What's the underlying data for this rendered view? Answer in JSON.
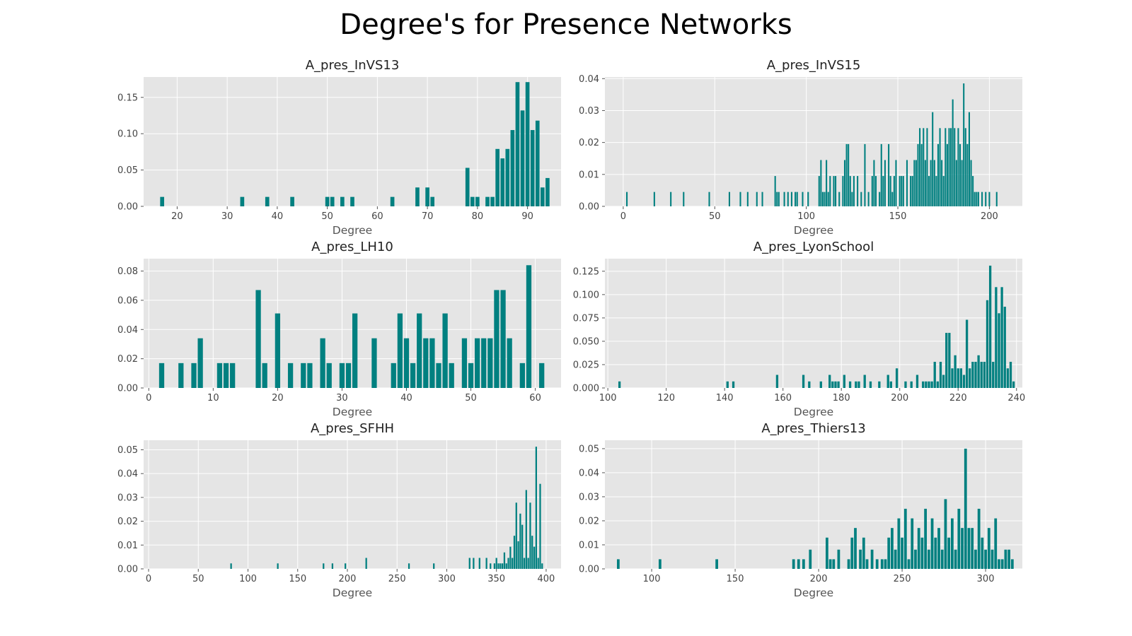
{
  "title": "Degree's for Presence Networks",
  "colors": {
    "bar": "#008080",
    "panel_bg": "#e5e5e5",
    "grid": "#ffffff"
  },
  "chart_data": [
    {
      "type": "bar",
      "title": "A_pres_InVS13",
      "xlabel": "Degree",
      "ylabel": "",
      "grid": true,
      "xlim": [
        13.3,
        96.7
      ],
      "ylim": [
        0,
        0.178
      ],
      "xticks": [
        20,
        30,
        40,
        50,
        60,
        70,
        80,
        90
      ],
      "yticks": [
        0.0,
        0.05,
        0.1,
        0.15
      ],
      "ytick_labels": [
        "0.00",
        "0.05",
        "0.10",
        "0.15"
      ],
      "x": [
        17,
        33,
        38,
        43,
        50,
        51,
        53,
        55,
        63,
        68,
        70,
        71,
        78,
        79,
        80,
        82,
        83,
        84,
        85,
        86,
        87,
        88,
        89,
        90,
        91,
        92,
        93,
        94
      ],
      "values": [
        0.013,
        0.013,
        0.013,
        0.013,
        0.013,
        0.013,
        0.013,
        0.013,
        0.013,
        0.026,
        0.026,
        0.013,
        0.053,
        0.013,
        0.013,
        0.013,
        0.013,
        0.079,
        0.066,
        0.079,
        0.105,
        0.171,
        0.132,
        0.171,
        0.105,
        0.118,
        0.026,
        0.039
      ]
    },
    {
      "type": "bar",
      "title": "A_pres_InVS15",
      "xlabel": "Degree",
      "ylabel": "",
      "grid": true,
      "xlim": [
        -10,
        218
      ],
      "ylim": [
        0,
        0.0405
      ],
      "xticks": [
        0,
        50,
        100,
        150,
        200
      ],
      "yticks": [
        0.0,
        0.01,
        0.02,
        0.03,
        0.04
      ],
      "ytick_labels": [
        "0.00",
        "0.01",
        "0.02",
        "0.03",
        "0.04"
      ],
      "x": [
        2,
        17,
        26,
        33,
        47,
        58,
        64,
        68,
        73,
        76,
        83,
        84,
        85,
        88,
        90,
        92,
        94,
        95,
        98,
        101,
        107,
        108,
        109,
        110,
        111,
        112,
        113,
        115,
        116,
        118,
        120,
        121,
        122,
        123,
        124,
        125,
        126,
        128,
        130,
        132,
        134,
        136,
        137,
        138,
        140,
        141,
        142,
        143,
        145,
        146,
        147,
        148,
        149,
        151,
        152,
        153,
        155,
        157,
        158,
        159,
        160,
        161,
        162,
        163,
        164,
        165,
        166,
        167,
        168,
        169,
        170,
        171,
        172,
        173,
        174,
        175,
        176,
        177,
        178,
        179,
        180,
        181,
        182,
        183,
        184,
        185,
        186,
        187,
        188,
        189,
        190,
        191,
        192,
        193,
        194,
        196,
        198,
        200,
        204
      ],
      "values": [
        0.0045,
        0.0045,
        0.0045,
        0.0045,
        0.0045,
        0.0045,
        0.0045,
        0.0045,
        0.0045,
        0.0045,
        0.0095,
        0.0045,
        0.0045,
        0.0045,
        0.0045,
        0.0045,
        0.0045,
        0.0045,
        0.0045,
        0.0045,
        0.0095,
        0.0145,
        0.0045,
        0.0045,
        0.0145,
        0.0045,
        0.0095,
        0.0095,
        0.0095,
        0.0045,
        0.0095,
        0.0145,
        0.0195,
        0.0195,
        0.0095,
        0.0045,
        0.0095,
        0.0095,
        0.0045,
        0.0195,
        0.0045,
        0.0095,
        0.0145,
        0.0095,
        0.0045,
        0.0195,
        0.0095,
        0.0145,
        0.0195,
        0.0095,
        0.0045,
        0.0095,
        0.0145,
        0.0095,
        0.0095,
        0.0095,
        0.0145,
        0.0095,
        0.0095,
        0.0145,
        0.0145,
        0.0195,
        0.0245,
        0.0195,
        0.0245,
        0.0145,
        0.0245,
        0.0095,
        0.0145,
        0.0295,
        0.0145,
        0.0095,
        0.0195,
        0.0245,
        0.0145,
        0.0095,
        0.0245,
        0.0195,
        0.0245,
        0.0245,
        0.0335,
        0.0245,
        0.0145,
        0.0245,
        0.0195,
        0.0145,
        0.0385,
        0.0245,
        0.0195,
        0.0295,
        0.0145,
        0.0095,
        0.0045,
        0.0045,
        0.0045,
        0.0045,
        0.0045,
        0.0045,
        0.0045
      ]
    },
    {
      "type": "bar",
      "title": "A_pres_LH10",
      "xlabel": "Degree",
      "ylabel": "",
      "grid": true,
      "xlim": [
        -0.8,
        64
      ],
      "ylim": [
        0,
        0.0885
      ],
      "xticks": [
        0,
        10,
        20,
        30,
        40,
        50,
        60
      ],
      "yticks": [
        0.0,
        0.02,
        0.04,
        0.06,
        0.08
      ],
      "ytick_labels": [
        "0.00",
        "0.02",
        "0.04",
        "0.06",
        "0.08"
      ],
      "x": [
        2,
        5,
        7,
        8,
        11,
        12,
        13,
        17,
        18,
        20,
        22,
        24,
        25,
        27,
        28,
        30,
        31,
        32,
        35,
        38,
        39,
        40,
        41,
        42,
        43,
        44,
        45,
        46,
        47,
        49,
        50,
        51,
        52,
        53,
        54,
        55,
        56,
        58,
        59,
        61
      ],
      "values": [
        0.017,
        0.017,
        0.017,
        0.034,
        0.017,
        0.017,
        0.017,
        0.067,
        0.017,
        0.051,
        0.017,
        0.017,
        0.017,
        0.034,
        0.017,
        0.017,
        0.017,
        0.051,
        0.034,
        0.017,
        0.051,
        0.034,
        0.017,
        0.051,
        0.034,
        0.034,
        0.017,
        0.051,
        0.017,
        0.034,
        0.017,
        0.034,
        0.034,
        0.034,
        0.067,
        0.067,
        0.034,
        0.017,
        0.084,
        0.017
      ]
    },
    {
      "type": "bar",
      "title": "A_pres_LyonSchool",
      "xlabel": "Degree",
      "ylabel": "",
      "grid": true,
      "xlim": [
        99,
        242
      ],
      "ylim": [
        0,
        0.1385
      ],
      "xticks": [
        100,
        120,
        140,
        160,
        180,
        200,
        220,
        240
      ],
      "yticks": [
        0.0,
        0.025,
        0.05,
        0.075,
        0.1,
        0.125
      ],
      "ytick_labels": [
        "0.000",
        "0.025",
        "0.050",
        "0.075",
        "0.100",
        "0.125"
      ],
      "x": [
        104,
        141,
        143,
        158,
        167,
        169,
        173,
        176,
        177,
        178,
        179,
        181,
        183,
        185,
        186,
        188,
        190,
        193,
        196,
        197,
        199,
        202,
        204,
        206,
        208,
        209,
        210,
        211,
        212,
        213,
        214,
        215,
        216,
        217,
        218,
        219,
        220,
        221,
        222,
        223,
        224,
        225,
        226,
        227,
        228,
        229,
        230,
        231,
        232,
        233,
        234,
        235,
        236,
        237,
        238,
        239
      ],
      "values": [
        0.007,
        0.007,
        0.007,
        0.014,
        0.014,
        0.007,
        0.007,
        0.014,
        0.007,
        0.007,
        0.007,
        0.014,
        0.007,
        0.007,
        0.007,
        0.014,
        0.007,
        0.007,
        0.014,
        0.007,
        0.021,
        0.007,
        0.007,
        0.014,
        0.007,
        0.007,
        0.007,
        0.007,
        0.028,
        0.007,
        0.028,
        0.014,
        0.059,
        0.059,
        0.021,
        0.035,
        0.021,
        0.021,
        0.014,
        0.073,
        0.021,
        0.028,
        0.028,
        0.035,
        0.028,
        0.028,
        0.094,
        0.131,
        0.028,
        0.108,
        0.08,
        0.108,
        0.087,
        0.021,
        0.028,
        0.007
      ]
    },
    {
      "type": "bar",
      "title": "A_pres_SFHH",
      "xlabel": "Degree",
      "ylabel": "",
      "grid": true,
      "xlim": [
        -5,
        415
      ],
      "ylim": [
        0,
        0.054
      ],
      "xticks": [
        0,
        50,
        100,
        150,
        200,
        250,
        300,
        350,
        400
      ],
      "yticks": [
        0.0,
        0.01,
        0.02,
        0.03,
        0.04,
        0.05
      ],
      "ytick_labels": [
        "0.00",
        "0.01",
        "0.02",
        "0.03",
        "0.04",
        "0.05"
      ],
      "x": [
        83,
        130,
        176,
        185,
        198,
        219,
        262,
        287,
        323,
        327,
        333,
        340,
        344,
        348,
        350,
        352,
        354,
        356,
        358,
        360,
        362,
        364,
        366,
        368,
        370,
        372,
        374,
        376,
        378,
        380,
        382,
        384,
        386,
        388,
        390,
        392,
        394,
        396
      ],
      "values": [
        0.0023,
        0.0023,
        0.0023,
        0.0023,
        0.0023,
        0.0046,
        0.0023,
        0.0023,
        0.0046,
        0.0046,
        0.0046,
        0.0046,
        0.0023,
        0.0023,
        0.0046,
        0.0023,
        0.0023,
        0.0023,
        0.0069,
        0.0023,
        0.0046,
        0.0093,
        0.0046,
        0.0139,
        0.0278,
        0.0116,
        0.0232,
        0.0185,
        0.0046,
        0.0331,
        0.0046,
        0.0278,
        0.0139,
        0.0093,
        0.0513,
        0.0046,
        0.0357,
        0.0023
      ]
    },
    {
      "type": "bar",
      "title": "A_pres_Thiers13",
      "xlabel": "Degree",
      "ylabel": "",
      "grid": true,
      "xlim": [
        72,
        322
      ],
      "ylim": [
        0,
        0.0535
      ],
      "xticks": [
        100,
        150,
        200,
        250,
        300
      ],
      "yticks": [
        0.0,
        0.01,
        0.02,
        0.03,
        0.04,
        0.05
      ],
      "ytick_labels": [
        "0.00",
        "0.01",
        "0.02",
        "0.03",
        "0.04",
        "0.05"
      ],
      "x": [
        80,
        105,
        139,
        185,
        188,
        191,
        195,
        205,
        207,
        209,
        212,
        218,
        220,
        222,
        225,
        227,
        229,
        232,
        235,
        238,
        240,
        242,
        244,
        246,
        248,
        250,
        252,
        254,
        256,
        258,
        260,
        262,
        264,
        266,
        268,
        270,
        272,
        274,
        276,
        278,
        280,
        282,
        284,
        286,
        288,
        290,
        292,
        294,
        296,
        298,
        300,
        302,
        304,
        306,
        308,
        310,
        312,
        314,
        316
      ],
      "values": [
        0.004,
        0.004,
        0.004,
        0.004,
        0.004,
        0.004,
        0.008,
        0.013,
        0.004,
        0.004,
        0.008,
        0.004,
        0.013,
        0.017,
        0.008,
        0.013,
        0.004,
        0.008,
        0.004,
        0.004,
        0.004,
        0.013,
        0.017,
        0.008,
        0.021,
        0.013,
        0.025,
        0.004,
        0.021,
        0.008,
        0.017,
        0.013,
        0.025,
        0.008,
        0.021,
        0.013,
        0.017,
        0.008,
        0.029,
        0.013,
        0.021,
        0.008,
        0.025,
        0.017,
        0.05,
        0.017,
        0.017,
        0.008,
        0.025,
        0.013,
        0.008,
        0.017,
        0.008,
        0.021,
        0.004,
        0.004,
        0.008,
        0.008,
        0.004
      ]
    }
  ]
}
